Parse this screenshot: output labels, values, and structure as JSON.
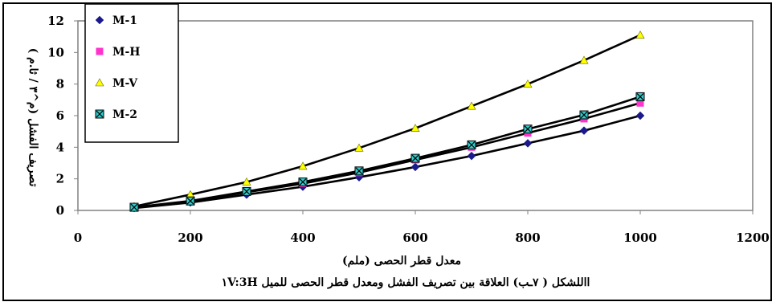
{
  "chart_data": {
    "type": "line",
    "xlabel": "معدل قطر الحصى (ملم)",
    "ylabel": "تصريف الفشل (م^٣ / ثا.م )",
    "caption": "االلشكل ( ٧ـب) العلاقة  بين تصريف الفشل ومعدل قطر الحصى للميل ١V:3H",
    "xlim": [
      0,
      1200
    ],
    "ylim": [
      0,
      12
    ],
    "x_ticks": [
      0,
      200,
      400,
      600,
      800,
      1000,
      1200
    ],
    "y_ticks": [
      0,
      2,
      4,
      6,
      8,
      10,
      12
    ],
    "x_tick_labels": [
      "0",
      "200",
      "400",
      "600",
      "800",
      "1000",
      "1200"
    ],
    "y_tick_labels": [
      "0",
      "2",
      "4",
      "6",
      "8",
      "10",
      "12"
    ],
    "grid": false,
    "legend_position": "top-left",
    "x": [
      100,
      200,
      300,
      400,
      500,
      600,
      700,
      800,
      900,
      1000
    ],
    "series": [
      {
        "name": "M-1",
        "marker": "diamond",
        "color": "#1a1a8c",
        "values": [
          0.15,
          0.5,
          1.0,
          1.5,
          2.1,
          2.75,
          3.45,
          4.25,
          5.05,
          6.0
        ]
      },
      {
        "name": "M-H",
        "marker": "square",
        "color": "#ff33cc",
        "values": [
          0.2,
          0.55,
          1.15,
          1.7,
          2.4,
          3.2,
          4.0,
          4.9,
          5.8,
          6.8
        ]
      },
      {
        "name": "M-V",
        "marker": "triangle",
        "color": "#ffff00",
        "values": [
          0.25,
          1.0,
          1.8,
          2.8,
          3.95,
          5.2,
          6.6,
          8.0,
          9.5,
          11.1
        ]
      },
      {
        "name": "M-2",
        "marker": "x-square",
        "color": "#33cccc",
        "values": [
          0.2,
          0.6,
          1.2,
          1.8,
          2.5,
          3.3,
          4.15,
          5.15,
          6.05,
          7.2
        ]
      }
    ]
  }
}
